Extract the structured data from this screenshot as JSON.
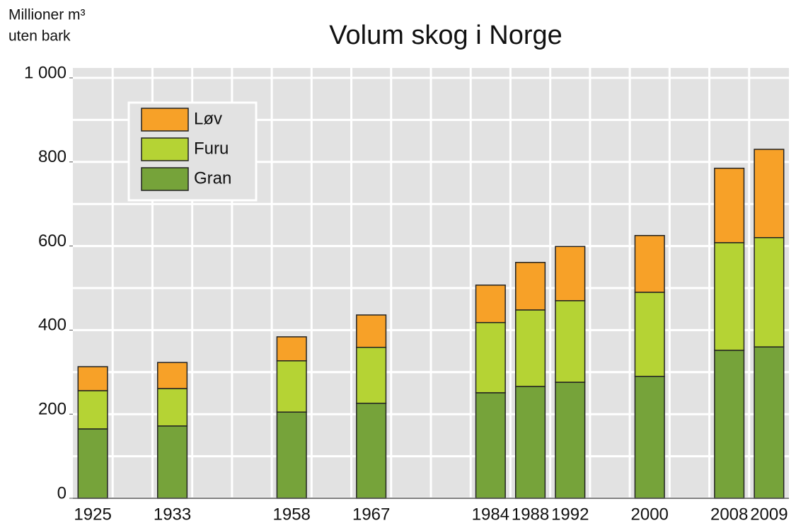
{
  "chart_data": {
    "type": "stacked_bar",
    "title": "Volum skog i Norge",
    "ylabel": [
      "Millioner m³",
      "uten bark"
    ],
    "categories": [
      "1925",
      null,
      "1933",
      null,
      null,
      "1958",
      null,
      "1967",
      null,
      null,
      "1984",
      "1988",
      "1992",
      null,
      "2000",
      null,
      "2008",
      "2009"
    ],
    "series": [
      {
        "name": "Gran",
        "color": "#76a33a",
        "values": [
          165,
          null,
          172,
          null,
          null,
          205,
          null,
          226,
          null,
          null,
          251,
          266,
          276,
          null,
          290,
          null,
          352,
          360
        ]
      },
      {
        "name": "Furu",
        "color": "#b5d334",
        "values": [
          91,
          null,
          89,
          null,
          null,
          122,
          null,
          133,
          null,
          null,
          167,
          182,
          194,
          null,
          200,
          null,
          256,
          260
        ]
      },
      {
        "name": "Løv",
        "color": "#f7a128",
        "values": [
          57,
          null,
          62,
          null,
          null,
          57,
          null,
          77,
          null,
          null,
          89,
          113,
          129,
          null,
          135,
          null,
          177,
          210
        ]
      }
    ],
    "ylim": [
      0,
      1000
    ],
    "yticks": [
      0,
      200,
      400,
      600,
      800,
      {
        "value": 1000,
        "label": "1 000"
      }
    ],
    "ygrid": [
      0,
      100,
      200,
      300,
      400,
      500,
      600,
      700,
      800,
      900,
      1000
    ],
    "grid": true,
    "legend": "upper left"
  }
}
